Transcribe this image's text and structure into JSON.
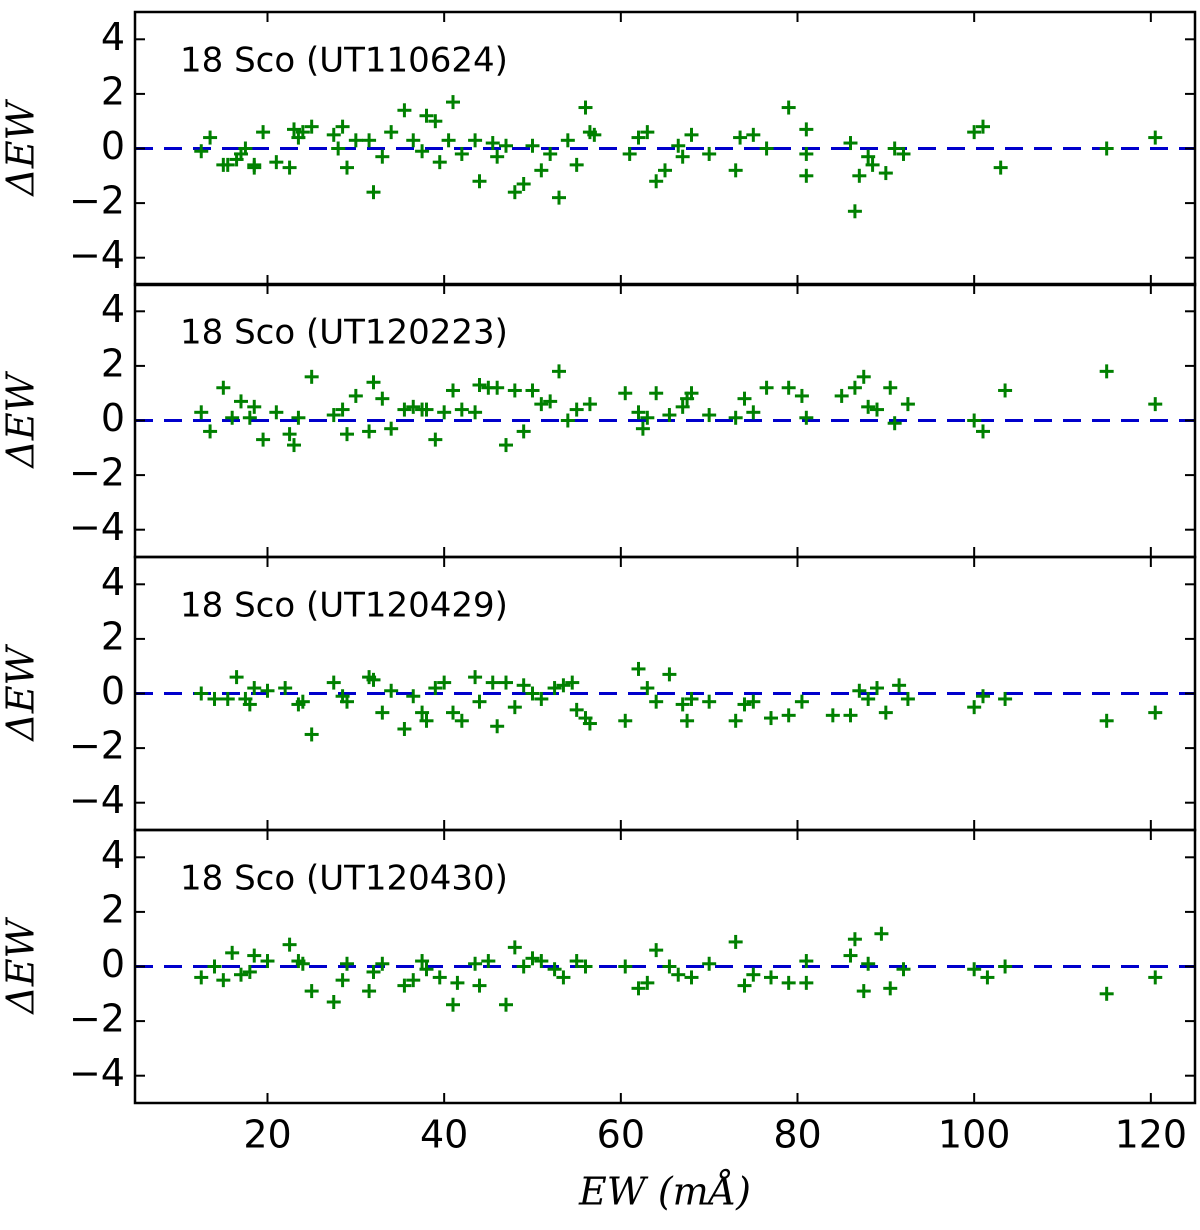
{
  "chart_data": [
    {
      "type": "scatter",
      "title": "18 Sco (UT110624)",
      "ylabel": "ΔEW",
      "color": "#008000",
      "hline": 0,
      "hline_color": "#0000cc",
      "xlim": [
        5,
        125
      ],
      "ylim": [
        -5,
        5
      ],
      "yticks": [
        {
          "value": -4,
          "label": "−4"
        },
        {
          "value": -2,
          "label": "−2"
        },
        0,
        2,
        4
      ],
      "x": [
        12.5,
        13.5,
        15,
        15.5,
        16.5,
        17,
        17.5,
        18.5,
        18.5,
        19.5,
        21,
        22.5,
        23,
        23.5,
        24,
        25,
        27.5,
        28,
        28.5,
        29,
        30,
        31.5,
        32,
        33,
        34,
        35.5,
        36.5,
        37.5,
        38,
        39,
        39.5,
        40.5,
        41,
        42,
        43.5,
        44,
        45.5,
        46,
        47,
        48,
        49,
        50,
        51,
        52,
        53,
        54,
        55,
        56,
        56.5,
        57,
        61,
        62,
        63,
        64,
        65,
        66.5,
        67,
        68,
        70,
        73,
        73.5,
        75,
        76.5,
        79,
        81,
        81,
        81,
        86,
        86.5,
        87,
        88,
        88.5,
        90,
        91,
        92,
        100,
        101,
        103,
        115,
        120.5
      ],
      "values": [
        -0.1,
        0.4,
        -0.6,
        -0.6,
        -0.4,
        -0.2,
        0,
        -0.6,
        -0.7,
        0.6,
        -0.5,
        -0.7,
        0.7,
        0.4,
        0.6,
        0.8,
        0.5,
        0,
        0.8,
        -0.7,
        0.3,
        0.3,
        -1.6,
        -0.3,
        0.6,
        1.4,
        0.3,
        -0.1,
        1.2,
        1,
        -0.5,
        0.3,
        1.7,
        -0.2,
        0.3,
        -1.2,
        0.2,
        -0.3,
        0.1,
        -1.6,
        -1.3,
        0.1,
        -0.8,
        -0.2,
        -1.8,
        0.3,
        -0.6,
        1.5,
        0.6,
        0.5,
        -0.2,
        0.4,
        0.6,
        -1.2,
        -0.8,
        0.1,
        -0.3,
        0.5,
        -0.2,
        -0.8,
        0.4,
        0.5,
        0,
        1.5,
        0.7,
        -1,
        -0.2,
        0.2,
        -2.3,
        -1,
        -0.3,
        -0.6,
        -0.9,
        0,
        -0.2,
        0.6,
        0.8,
        -0.7,
        0,
        0.4
      ]
    },
    {
      "type": "scatter",
      "title": "18 Sco (UT120223)",
      "ylabel": "ΔEW",
      "color": "#008000",
      "hline": 0,
      "hline_color": "#0000cc",
      "xlim": [
        5,
        125
      ],
      "ylim": [
        -5,
        5
      ],
      "yticks": [
        {
          "value": -4,
          "label": "−4"
        },
        {
          "value": -2,
          "label": "−2"
        },
        0,
        2,
        4
      ],
      "x": [
        12.5,
        13.5,
        15,
        16,
        17,
        18,
        18.5,
        19.5,
        21,
        22.5,
        23,
        23.5,
        25,
        27.5,
        28.5,
        29,
        30,
        31.5,
        32,
        33,
        34,
        35.5,
        36.5,
        37.5,
        38,
        39,
        40,
        41,
        42,
        43.5,
        44,
        45,
        46,
        47,
        48,
        49,
        50,
        51,
        52,
        53,
        54,
        55,
        56.5,
        60.5,
        62,
        62.5,
        63,
        64,
        65.5,
        67,
        67.5,
        68,
        70,
        73,
        74,
        75,
        76.5,
        79,
        80.5,
        81,
        85,
        86.5,
        87.5,
        88,
        89,
        90.5,
        91,
        92.5,
        100,
        101,
        103.5,
        115,
        120.5
      ],
      "values": [
        0.3,
        -0.4,
        1.2,
        0.1,
        0.7,
        0.1,
        0.5,
        -0.7,
        0.3,
        -0.5,
        -0.9,
        0.1,
        1.6,
        0.2,
        0.4,
        -0.5,
        0.9,
        -0.4,
        1.4,
        0.8,
        -0.3,
        0.4,
        0.5,
        0.4,
        0.4,
        -0.7,
        0.3,
        1.1,
        0.4,
        0.3,
        1.3,
        1.2,
        1.2,
        -0.9,
        1.1,
        -0.4,
        1.1,
        0.6,
        0.7,
        1.8,
        0,
        0.4,
        0.6,
        1,
        0.3,
        -0.3,
        0.1,
        1,
        0.2,
        0.5,
        0.8,
        1,
        0.2,
        0.1,
        0.8,
        0.3,
        1.2,
        1.2,
        0.9,
        0.1,
        0.9,
        1.2,
        1.6,
        0.5,
        0.4,
        1.2,
        -0.1,
        0.6,
        0,
        -0.4,
        1.1,
        1.8,
        0.6
      ]
    },
    {
      "type": "scatter",
      "title": "18 Sco (UT120429)",
      "ylabel": "ΔEW",
      "color": "#008000",
      "hline": 0,
      "hline_color": "#0000cc",
      "xlim": [
        5,
        125
      ],
      "ylim": [
        -5,
        5
      ],
      "yticks": [
        {
          "value": -4,
          "label": "−4"
        },
        {
          "value": -2,
          "label": "−2"
        },
        0,
        2,
        4
      ],
      "x": [
        12.5,
        14,
        15.5,
        16.5,
        17.5,
        18,
        18.5,
        20,
        22,
        23.5,
        24,
        25,
        27.5,
        28.5,
        29,
        31.5,
        32,
        33,
        34,
        35.5,
        36.5,
        37.5,
        38,
        39,
        40,
        41,
        42,
        43.5,
        44,
        45.5,
        46,
        47,
        48,
        49,
        50,
        51,
        52.5,
        53.5,
        54.5,
        55,
        56,
        56.5,
        60.5,
        62,
        63,
        64,
        65.5,
        67,
        67.5,
        68,
        70,
        73,
        74,
        75,
        77,
        79,
        80.5,
        84,
        86,
        87,
        88,
        89,
        90,
        91.5,
        92.5,
        100,
        101,
        103.5,
        115,
        120.5
      ],
      "values": [
        0,
        -0.2,
        -0.2,
        0.6,
        -0.2,
        -0.4,
        0.2,
        0.1,
        0.2,
        -0.4,
        -0.3,
        -1.5,
        0.4,
        -0.1,
        -0.3,
        0.6,
        0.5,
        -0.7,
        0.1,
        -1.3,
        -0.1,
        -0.7,
        -1,
        0.2,
        0.4,
        -0.7,
        -1,
        0.6,
        -0.3,
        0.4,
        -1.2,
        0.4,
        -0.5,
        0.3,
        0,
        -0.2,
        0.2,
        0.3,
        0.4,
        -0.6,
        -0.9,
        -1.1,
        -1,
        0.9,
        0.2,
        -0.3,
        0.7,
        -0.4,
        -1,
        -0.2,
        -0.3,
        -1,
        -0.4,
        -0.3,
        -0.9,
        -0.8,
        -0.3,
        -0.8,
        -0.8,
        0.1,
        -0.2,
        0.2,
        -0.7,
        0.3,
        -0.2,
        -0.5,
        -0.1,
        -0.2,
        -1,
        -0.7
      ]
    },
    {
      "type": "scatter",
      "title": "18 Sco (UT120430)",
      "ylabel": "ΔEW",
      "xlabel": "EW (mÅ)",
      "color": "#008000",
      "hline": 0,
      "hline_color": "#0000cc",
      "xlim": [
        5,
        125
      ],
      "ylim": [
        -5,
        5
      ],
      "xticks": [
        20,
        40,
        60,
        80,
        100,
        120
      ],
      "yticks": [
        {
          "value": -4,
          "label": "−4"
        },
        {
          "value": -2,
          "label": "−2"
        },
        0,
        2,
        4
      ],
      "x": [
        12.5,
        14,
        15,
        16,
        17,
        18,
        18.5,
        20,
        22.5,
        23.5,
        24,
        25,
        27.5,
        28.5,
        29,
        31.5,
        32,
        33,
        35.5,
        36.5,
        37.5,
        38,
        39.5,
        41,
        41.5,
        43.5,
        44,
        45,
        47,
        48,
        49,
        50,
        51,
        52.5,
        53.5,
        55,
        56,
        60.5,
        62,
        63,
        64,
        65.5,
        66.5,
        68,
        70,
        73,
        74,
        75,
        77,
        79,
        81,
        81,
        86,
        86.5,
        87.5,
        88,
        89.5,
        90.5,
        92,
        100,
        101.5,
        103.5,
        115,
        120.5
      ],
      "values": [
        -0.4,
        0,
        -0.5,
        0.5,
        -0.3,
        -0.2,
        0.4,
        0.2,
        0.8,
        0.2,
        0.1,
        -0.9,
        -1.3,
        -0.5,
        0.1,
        -0.9,
        -0.2,
        0.1,
        -0.7,
        -0.5,
        0.2,
        -0.1,
        -0.4,
        -1.4,
        -0.6,
        0.1,
        -0.7,
        0.2,
        -1.4,
        0.7,
        0,
        0.3,
        0.2,
        -0.1,
        -0.4,
        0.2,
        0,
        0,
        -0.8,
        -0.6,
        0.6,
        0,
        -0.3,
        -0.4,
        0.1,
        0.9,
        -0.7,
        -0.3,
        -0.4,
        -0.6,
        0.2,
        -0.6,
        0.4,
        1,
        -0.9,
        0.1,
        1.2,
        -0.8,
        -0.1,
        -0.1,
        -0.4,
        0,
        -1,
        -0.4
      ]
    }
  ]
}
